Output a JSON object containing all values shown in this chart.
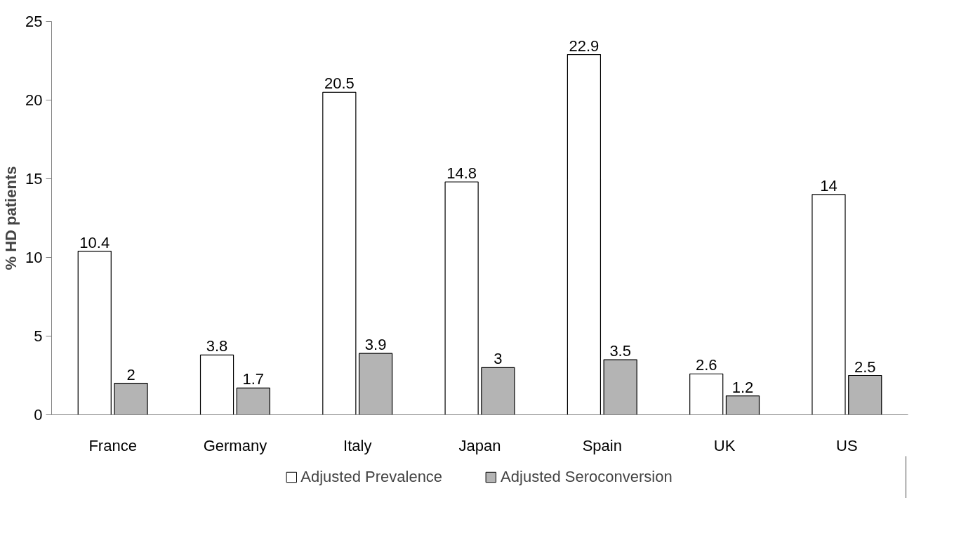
{
  "chart_data": {
    "type": "bar",
    "ylabel": "% HD patients",
    "categories": [
      "France",
      "Germany",
      "Italy",
      "Japan",
      "Spain",
      "UK",
      "US"
    ],
    "series": [
      {
        "name": "Adjusted Prevalence",
        "color": "#ffffff",
        "values": [
          10.4,
          3.8,
          20.5,
          14.8,
          22.9,
          2.6,
          14
        ]
      },
      {
        "name": "Adjusted Seroconversion",
        "color": "#b4b4b4",
        "values": [
          2,
          1.7,
          3.9,
          3,
          3.5,
          1.2,
          2.5
        ]
      }
    ],
    "ylim": [
      0,
      25
    ],
    "yticks": [
      0,
      5,
      10,
      15,
      20,
      25
    ],
    "grid": false,
    "legend": "bottom",
    "data_labels": true
  }
}
